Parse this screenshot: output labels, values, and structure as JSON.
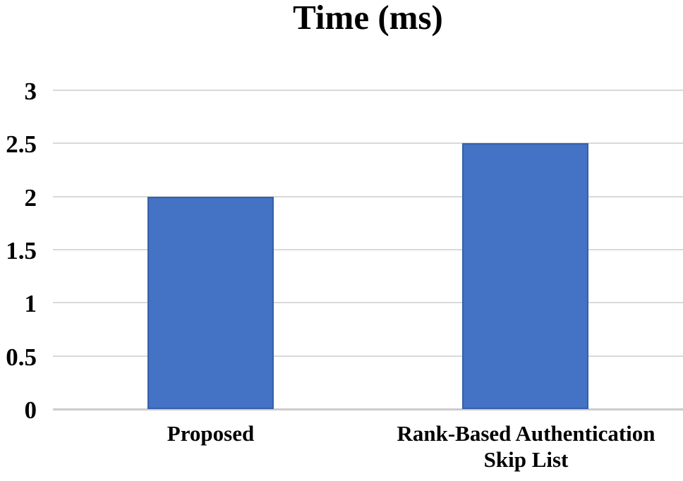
{
  "chart_data": {
    "type": "bar",
    "title": "Time (ms)",
    "categories": [
      {
        "lines": [
          "Proposed"
        ]
      },
      {
        "lines": [
          "Rank-Based Authentication",
          "Skip List"
        ]
      }
    ],
    "values": [
      2,
      2.5
    ],
    "xlabel": "",
    "ylabel": "",
    "ylim": [
      0,
      3
    ],
    "yticks": [
      {
        "value": 0,
        "label": "0"
      },
      {
        "value": 0.5,
        "label": "0.5"
      },
      {
        "value": 1,
        "label": "1"
      },
      {
        "value": 1.5,
        "label": "1.5"
      },
      {
        "value": 2,
        "label": "2"
      },
      {
        "value": 2.5,
        "label": "2.5"
      },
      {
        "value": 3,
        "label": "3"
      }
    ],
    "grid": "horizontal",
    "legend": "none",
    "colors": {
      "bar_fill": "#4472c4",
      "bar_border": "#3560a8",
      "gridline": "#d9d9d9",
      "zero_line": "#cccccc",
      "text": "#000000",
      "background": "#ffffff"
    }
  }
}
